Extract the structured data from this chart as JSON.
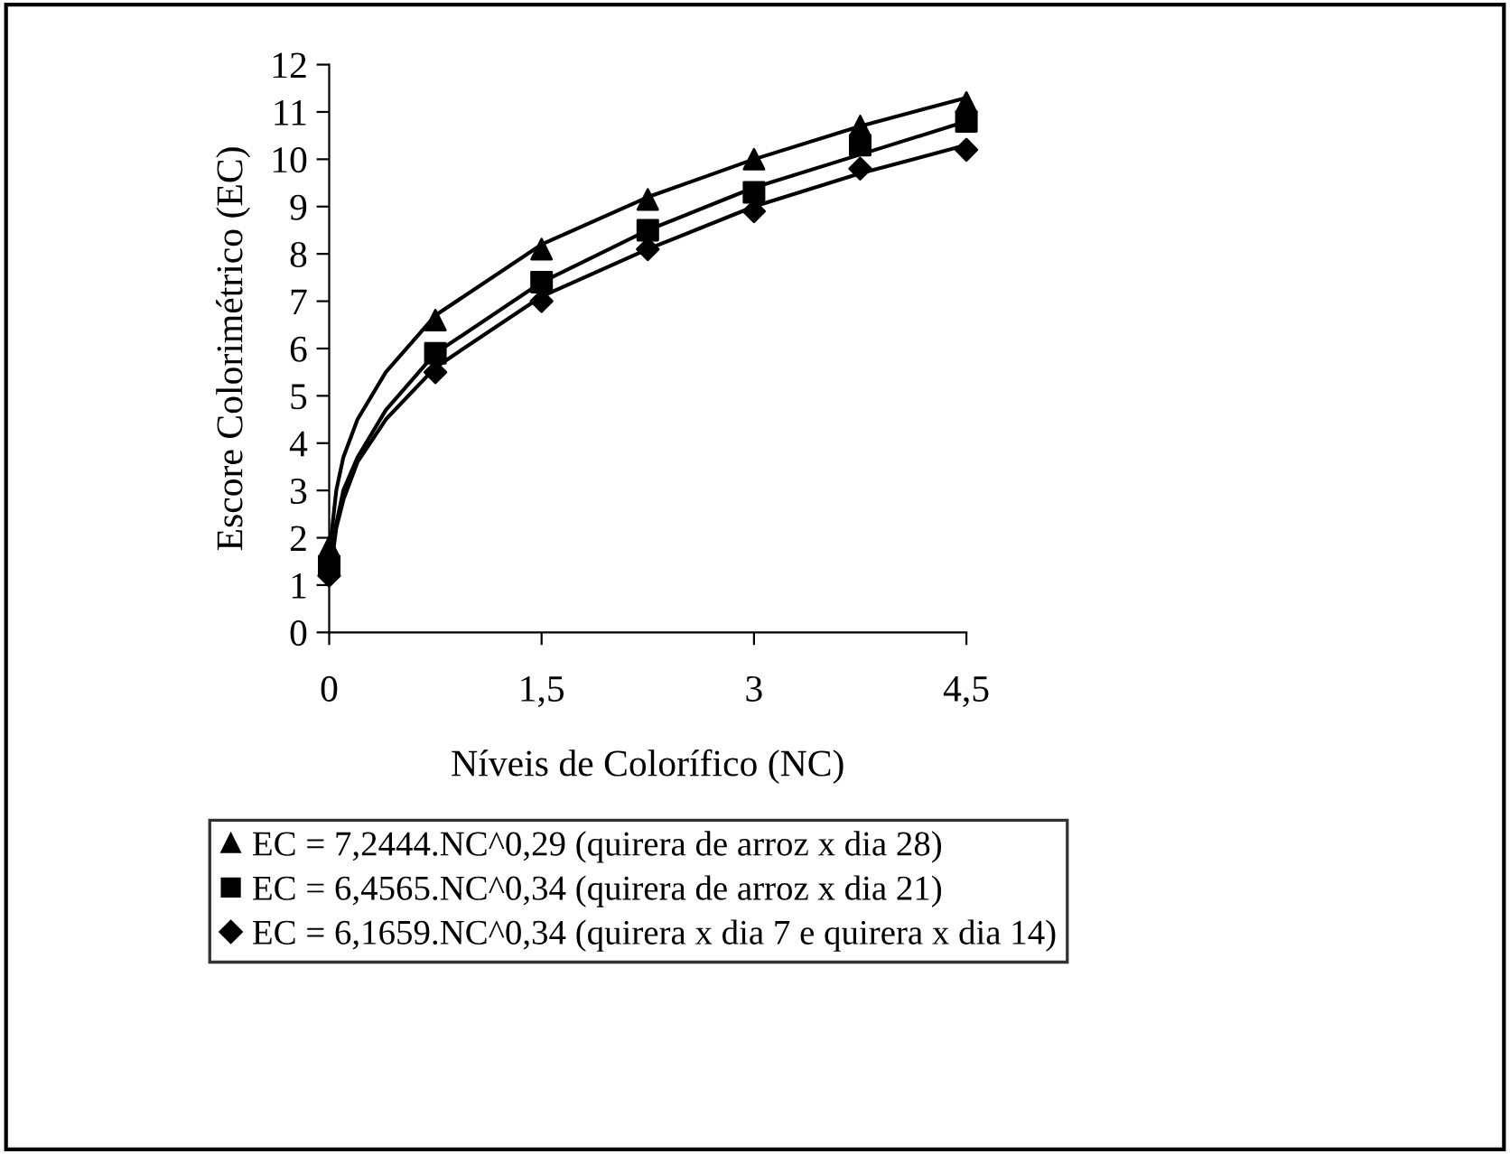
{
  "chart_data": {
    "type": "line",
    "xlabel": "Níveis de Colorífico (NC)",
    "ylabel": "Escore Colorimétrico (EC)",
    "xlim": [
      0,
      4.5
    ],
    "xticks": [
      0,
      {
        "value": 1.5,
        "label": "1,5"
      },
      3,
      {
        "value": 4.5,
        "label": "4,5"
      }
    ],
    "ylim": [
      0,
      12
    ],
    "yticks": [
      0,
      1,
      2,
      3,
      4,
      5,
      6,
      7,
      8,
      9,
      10,
      11,
      12
    ],
    "grid": false,
    "legend": "bottom",
    "series": [
      {
        "name": "EC = 7,2444.NC^0,29 (quirera de arroz x dia 28)",
        "type": "scatter",
        "marker": "triangle",
        "color": "#000000",
        "x": [
          0,
          0.75,
          1.5,
          2.25,
          3,
          3.75,
          4.5
        ],
        "values": [
          1.8,
          6.6,
          8.1,
          9.15,
          10.0,
          10.7,
          11.2
        ]
      },
      {
        "name": "EC = 6,4565.NC^0,34 (quirera de arroz x dia 21)",
        "type": "scatter",
        "marker": "square",
        "color": "#000000",
        "x": [
          0,
          0.75,
          1.5,
          2.25,
          3,
          3.75,
          4.5
        ],
        "values": [
          1.4,
          5.9,
          7.4,
          8.5,
          9.3,
          10.3,
          10.8
        ]
      },
      {
        "name": "EC = 6,1659.NC^0,34 (quirera x dia 7 e quirera x dia 14)",
        "type": "scatter",
        "marker": "diamond",
        "color": "#000000",
        "x": [
          0,
          0.75,
          1.5,
          2.25,
          3,
          3.75,
          4.5
        ],
        "values": [
          1.2,
          5.5,
          7.0,
          8.1,
          8.9,
          9.8,
          10.2
        ]
      },
      {
        "color": "#000000",
        "x": [
          0.01,
          0.05,
          0.1,
          0.2,
          0.4,
          0.75,
          1.5,
          2.25,
          3,
          3.75,
          4.5
        ],
        "values": [
          1.9,
          3.0,
          3.7,
          4.5,
          5.5,
          6.7,
          8.2,
          9.2,
          10.0,
          10.7,
          11.3
        ]
      },
      {
        "color": "#000000",
        "x": [
          0.01,
          0.05,
          0.1,
          0.2,
          0.4,
          0.75,
          1.5,
          2.25,
          3,
          3.75,
          4.5
        ],
        "values": [
          1.4,
          2.3,
          3.0,
          3.7,
          4.7,
          5.9,
          7.4,
          8.5,
          9.4,
          10.1,
          10.8
        ]
      },
      {
        "color": "#000000",
        "x": [
          0.01,
          0.05,
          0.1,
          0.2,
          0.4,
          0.75,
          1.5,
          2.25,
          3,
          3.75,
          4.5
        ],
        "values": [
          1.3,
          2.2,
          2.8,
          3.6,
          4.5,
          5.6,
          7.1,
          8.1,
          9.0,
          9.7,
          10.3
        ]
      }
    ]
  }
}
